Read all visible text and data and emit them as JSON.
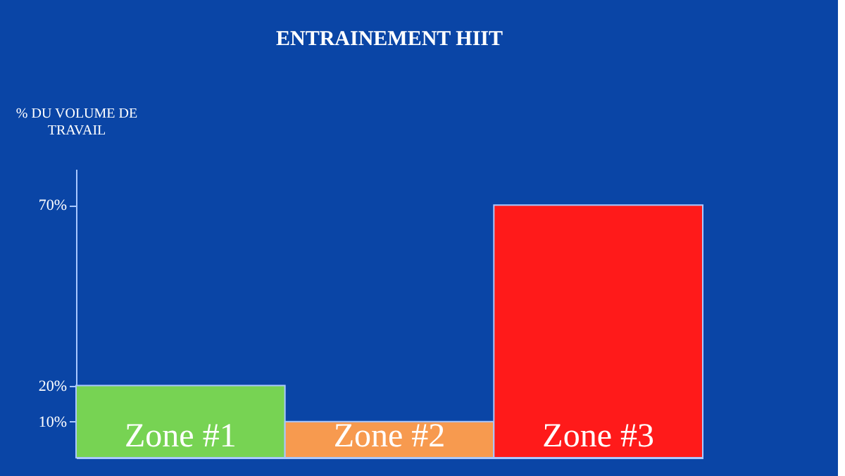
{
  "chart_data": {
    "type": "bar",
    "title": "ENTRAINEMENT HIIT",
    "ylabel": "% DU  VOLUME DE TRAVAIL",
    "categories": [
      "Zone #1",
      "Zone #2",
      "Zone #3"
    ],
    "values": [
      20,
      10,
      70
    ],
    "colors": [
      "#77d353",
      "#f79a4f",
      "#ff1a1a"
    ],
    "ylim": [
      0,
      80
    ],
    "yticks": [
      {
        "value": 10,
        "label": "10%"
      },
      {
        "value": 20,
        "label": "20%"
      },
      {
        "value": 70,
        "label": "70%"
      }
    ],
    "grid": false
  }
}
